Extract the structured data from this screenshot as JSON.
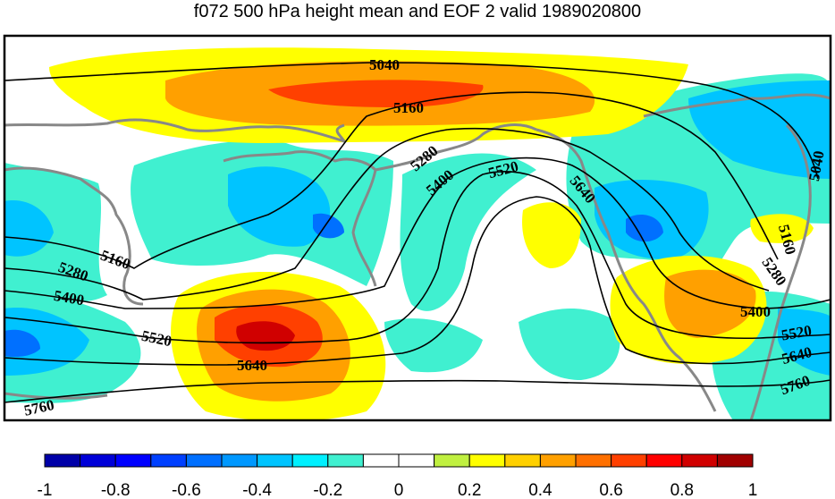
{
  "chart_data": {
    "type": "contour-map",
    "title": "f072 500 hPa height mean and EOF 2 valid 1989020800",
    "contour_levels": [
      "5040",
      "5160",
      "5280",
      "5400",
      "5520",
      "5640",
      "5760"
    ],
    "colorbar": {
      "min": -1,
      "max": 1,
      "ticks": [
        "-1",
        "-0.8",
        "-0.6",
        "-0.4",
        "-0.2",
        "0",
        "0.2",
        "0.4",
        "0.6",
        "0.8",
        "1"
      ],
      "colors": [
        "#0000a8",
        "#0000d8",
        "#0000ff",
        "#0040ff",
        "#0070ff",
        "#0098ff",
        "#00c4ff",
        "#00f0ff",
        "#40f0d0",
        "#ffffff",
        "#ffffff",
        "#c0f040",
        "#ffff00",
        "#ffd000",
        "#ffa000",
        "#ff7000",
        "#ff4000",
        "#ff0000",
        "#d00000",
        "#a00000"
      ]
    }
  }
}
